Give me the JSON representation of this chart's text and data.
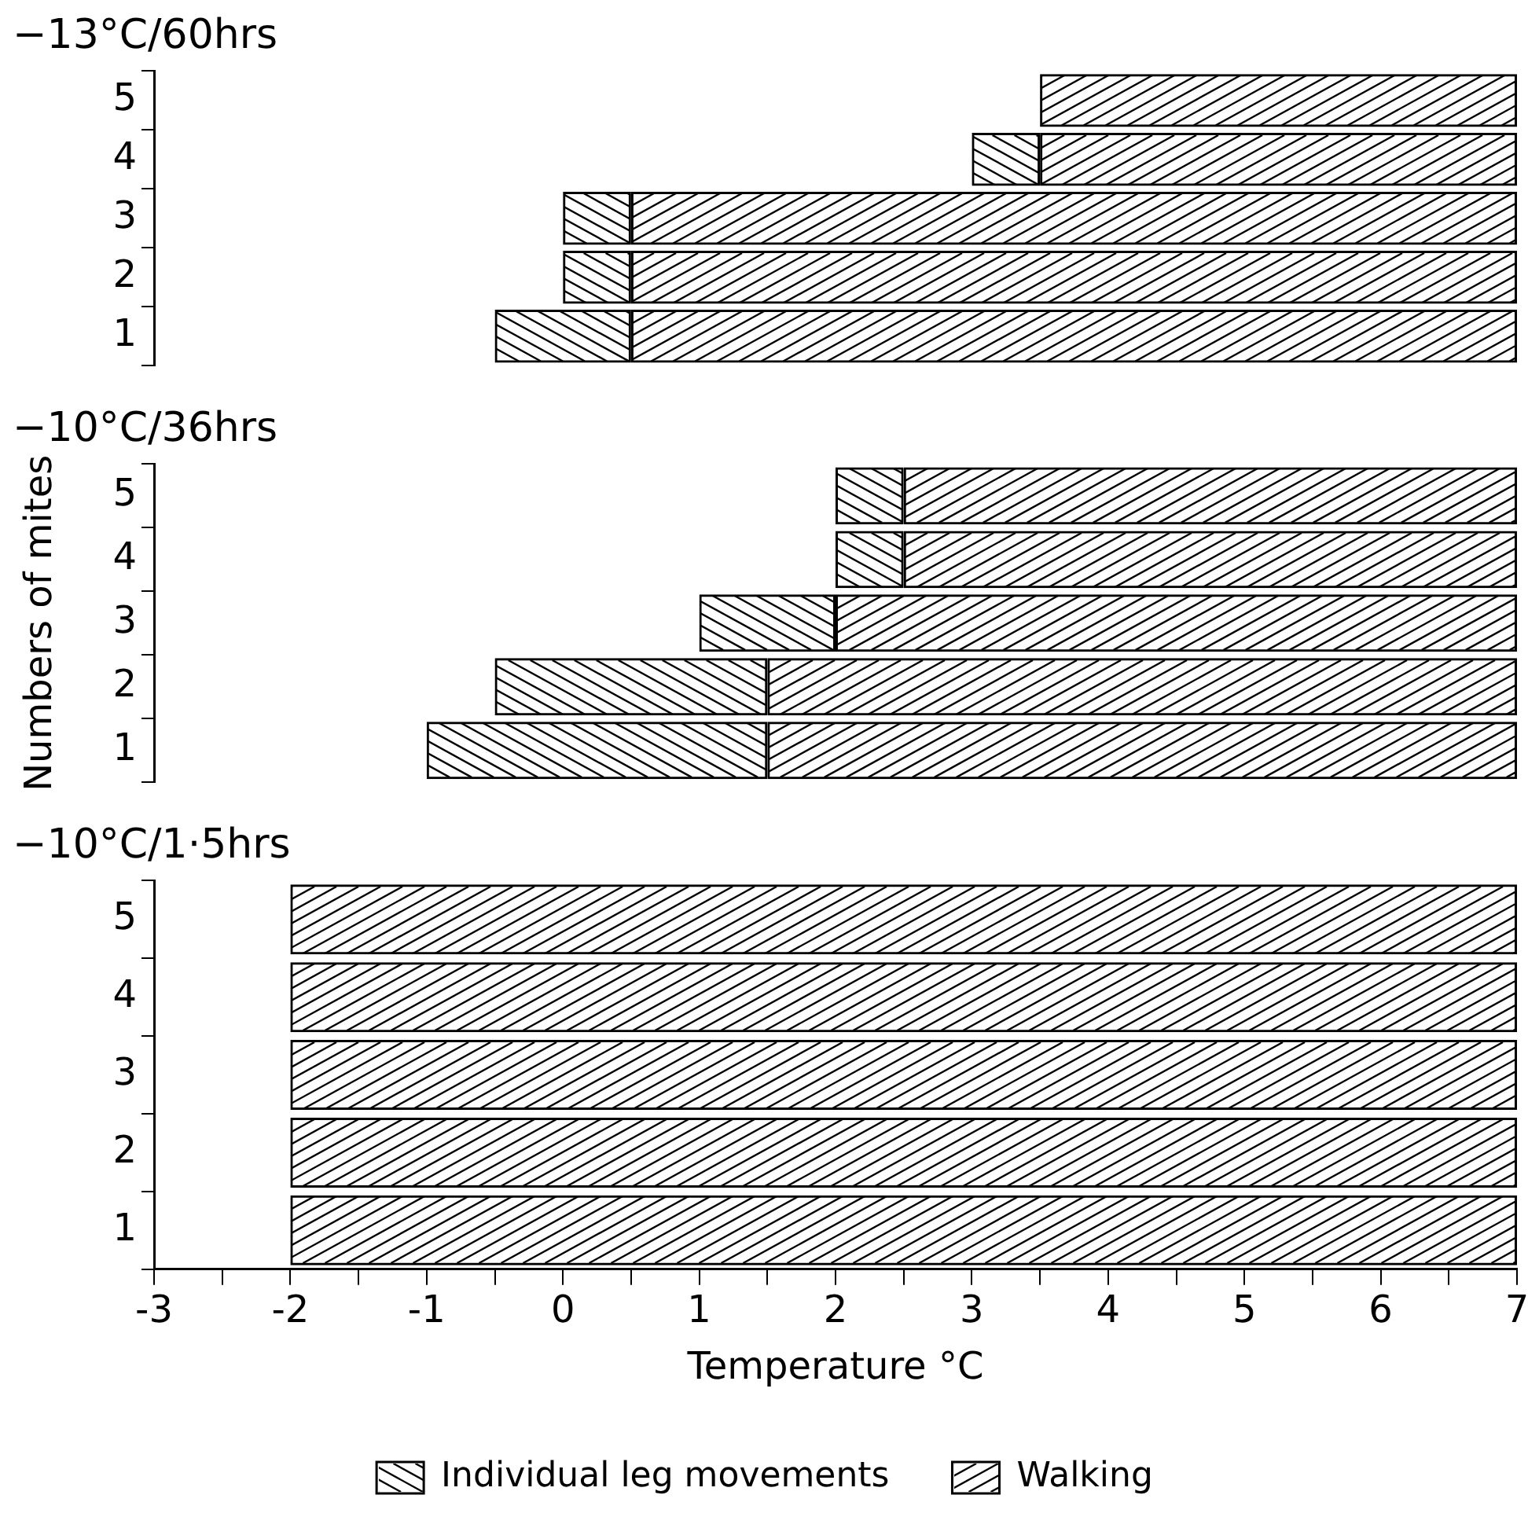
{
  "chart_data": [
    {
      "type": "bar",
      "orientation": "horizontal",
      "title": "−13°C/60hrs",
      "categories": [
        "5",
        "4",
        "3",
        "2",
        "1"
      ],
      "xlim": [
        -3,
        7
      ],
      "tick_labels": "y",
      "grid": false,
      "legend": false,
      "series": [
        {
          "color": "#000000",
          "base": [
            null,
            3,
            0,
            0,
            -0.5
          ],
          "values": [
            null,
            0.5,
            0.5,
            0.5,
            1
          ]
        },
        {
          "color": "#000000",
          "base": [
            3.5,
            3.5,
            0.5,
            0.5,
            0.5
          ],
          "values": [
            3.5,
            3.5,
            6.5,
            6.5,
            6.5
          ]
        }
      ]
    },
    {
      "type": "bar",
      "orientation": "horizontal",
      "title": "−10°C/36hrs",
      "ylabel": "Numbers of mites",
      "categories": [
        "5",
        "4",
        "3",
        "2",
        "1"
      ],
      "xlim": [
        -3,
        7
      ],
      "tick_labels": "y",
      "grid": false,
      "legend": false,
      "series": [
        {
          "color": "#000000",
          "base": [
            2,
            2,
            1,
            -0.5,
            -1
          ],
          "values": [
            0.5,
            0.5,
            1,
            2,
            2.5
          ]
        },
        {
          "color": "#000000",
          "base": [
            2.5,
            2.5,
            2,
            1.5,
            1.5
          ],
          "values": [
            4.5,
            4.5,
            5,
            5.5,
            5.5
          ]
        }
      ]
    },
    {
      "type": "bar",
      "orientation": "horizontal",
      "title": "−10°C/1·5hrs",
      "xlabel": "Temperature °C",
      "categories": [
        "5",
        "4",
        "3",
        "2",
        "1"
      ],
      "xlim": [
        -3,
        7
      ],
      "xticks": [
        -3,
        {
          "value": -2.5,
          "label": null
        },
        -2,
        {
          "value": -1.5,
          "label": null
        },
        -1,
        {
          "value": -0.5,
          "label": null
        },
        0,
        {
          "value": 0.5,
          "label": null
        },
        1,
        {
          "value": 1.5,
          "label": null
        },
        2,
        {
          "value": 2.5,
          "label": null
        },
        3,
        {
          "value": 3.5,
          "label": null
        },
        4,
        {
          "value": 4.5,
          "label": null
        },
        5,
        {
          "value": 5.5,
          "label": null
        },
        6,
        {
          "value": 6.5,
          "label": null
        },
        7
      ],
      "grid": false,
      "legend": "bottom",
      "series": [
        {
          "name": "Individual leg movements",
          "color": "#000000",
          "base": [
            null,
            null,
            null,
            null,
            null
          ],
          "values": [
            null,
            null,
            null,
            null,
            null
          ]
        },
        {
          "name": "Walking",
          "color": "#000000",
          "base": [
            -2,
            -2,
            -2,
            -2,
            -2
          ],
          "values": [
            9,
            9,
            9,
            9,
            9
          ]
        }
      ]
    }
  ]
}
